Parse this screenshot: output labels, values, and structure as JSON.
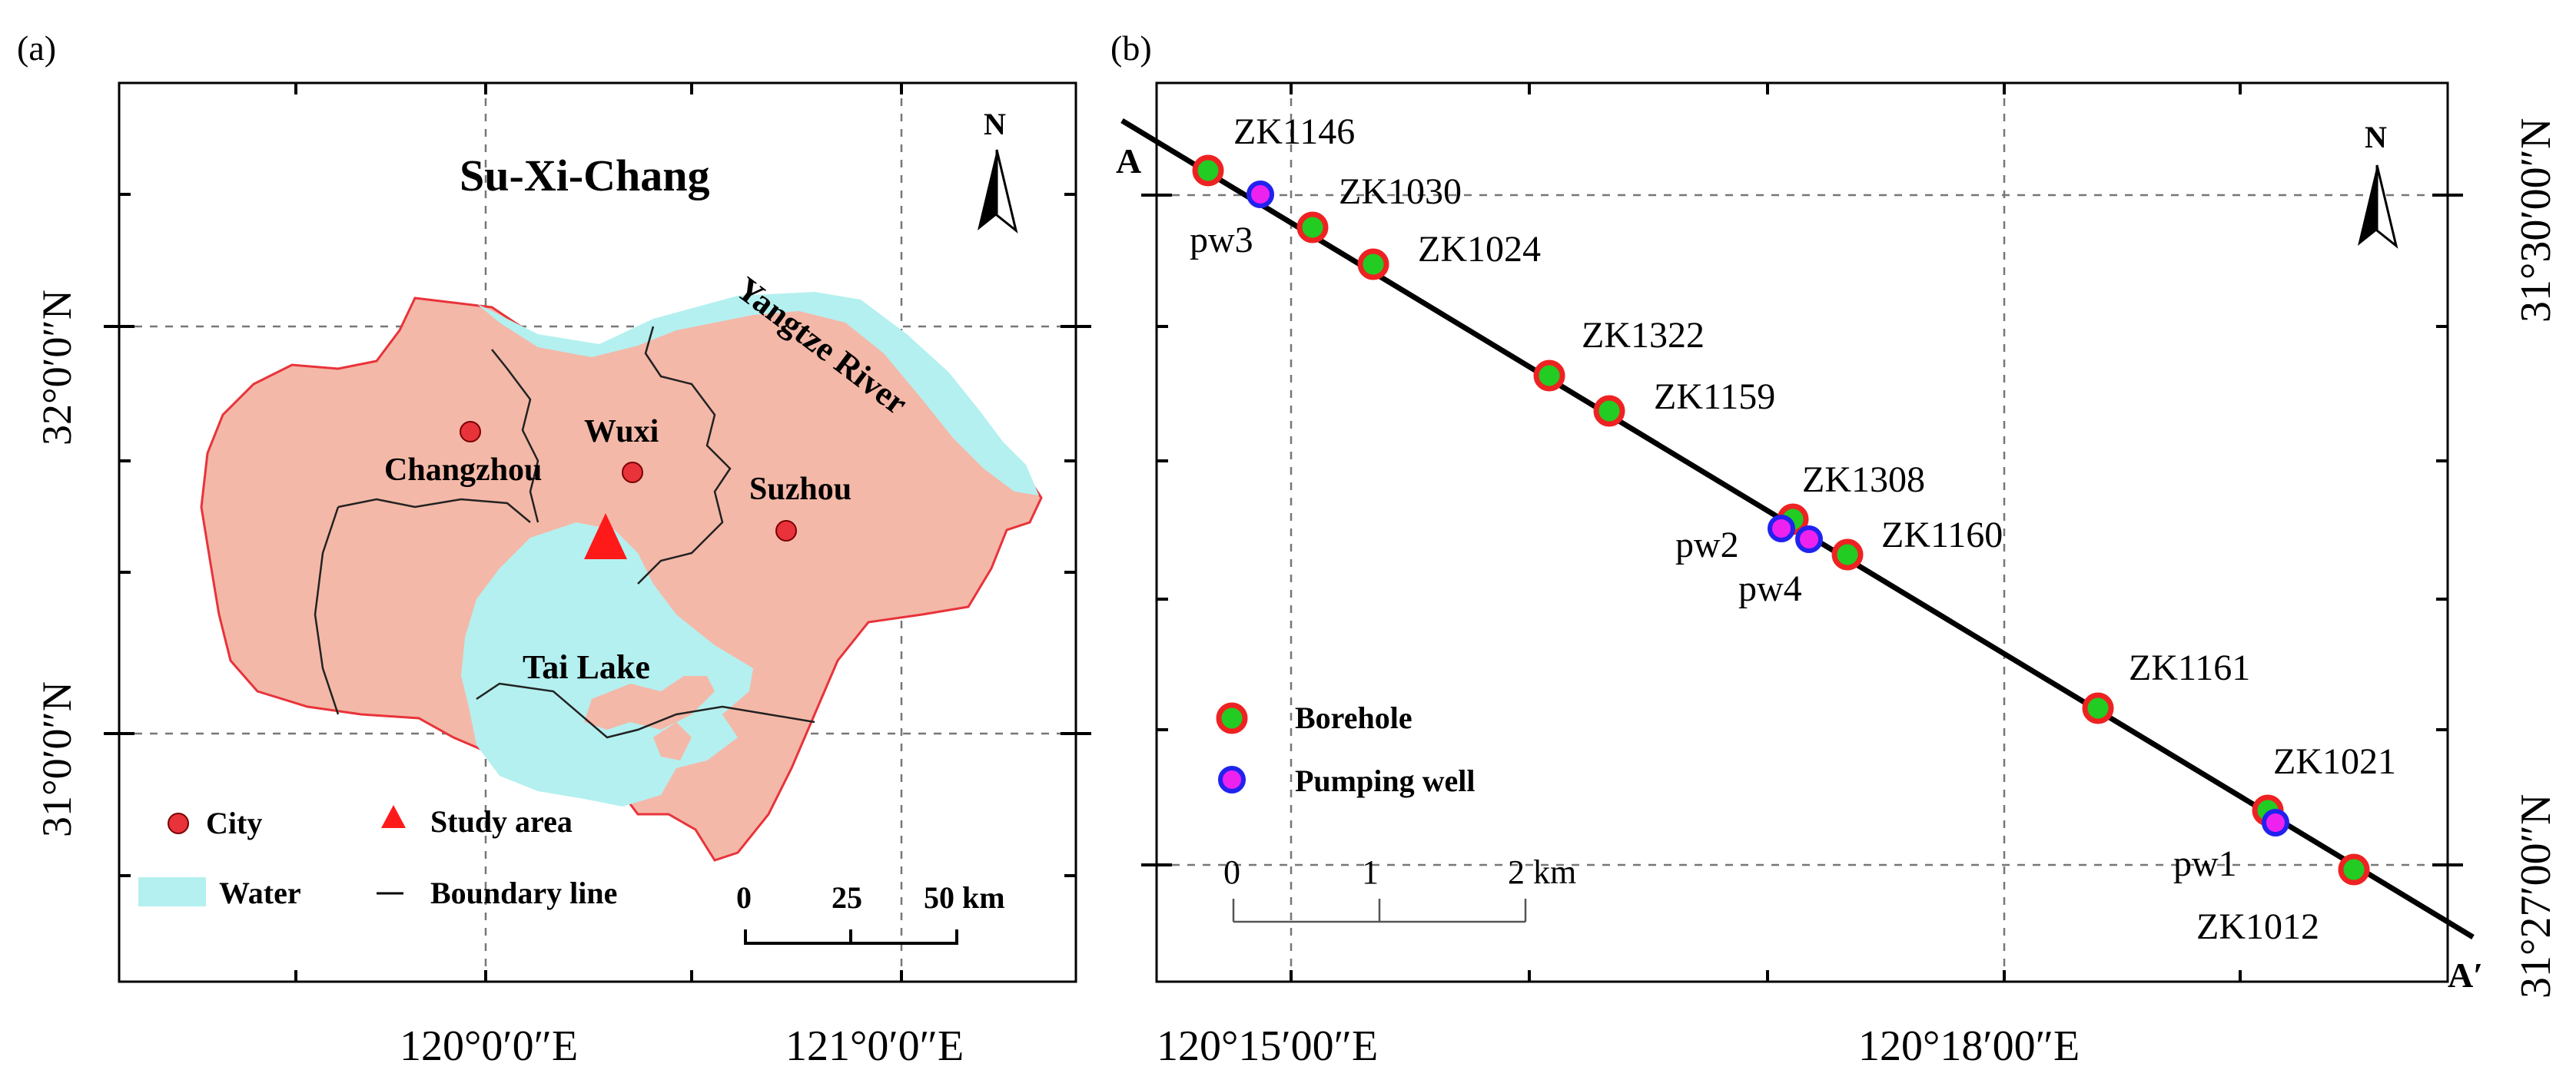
{
  "panel_a": {
    "label": "(a)",
    "title": "Su-Xi-Chang",
    "north": "N",
    "cities": [
      {
        "name": "Changzhou"
      },
      {
        "name": "Wuxi"
      },
      {
        "name": "Suzhou"
      }
    ],
    "water_labels": {
      "lake": "Tai Lake",
      "river": "Yangtze River"
    },
    "lat_labels": [
      "32°0′0″N",
      "31°0′0″N"
    ],
    "lon_labels": [
      "120°0′0″E",
      "121°0′0″E"
    ],
    "legend": {
      "city": "City",
      "study_area": "Study area",
      "water": "Water",
      "boundary": "Boundary line"
    },
    "scale": {
      "ticks": [
        "0",
        "25",
        "50 km"
      ]
    },
    "colors": {
      "land": "#f4b8a8",
      "water": "#b4f0f0",
      "outline": "#e8333a",
      "city": "#e8333a"
    }
  },
  "panel_b": {
    "label": "(b)",
    "north": "N",
    "section_start": "A",
    "section_end": "A′",
    "boreholes": [
      "ZK1146",
      "ZK1030",
      "ZK1024",
      "ZK1322",
      "ZK1159",
      "ZK1308",
      "ZK1160",
      "ZK1161",
      "ZK1021",
      "ZK1012"
    ],
    "wells": [
      "pw3",
      "pw2",
      "pw4",
      "pw1"
    ],
    "legend": {
      "borehole": "Borehole",
      "well": "Pumping well"
    },
    "scale": {
      "ticks": [
        "0",
        "1",
        "2 km"
      ]
    },
    "lat_labels": [
      "31°30′00″N",
      "31°27′00″N"
    ],
    "lon_labels": [
      "120°15′00″E",
      "120°18′00″E"
    ],
    "colors": {
      "borehole_fill": "#22cc22",
      "borehole_ring": "#ee2222",
      "well_fill": "#ee22ee",
      "well_ring": "#2222ee"
    }
  }
}
